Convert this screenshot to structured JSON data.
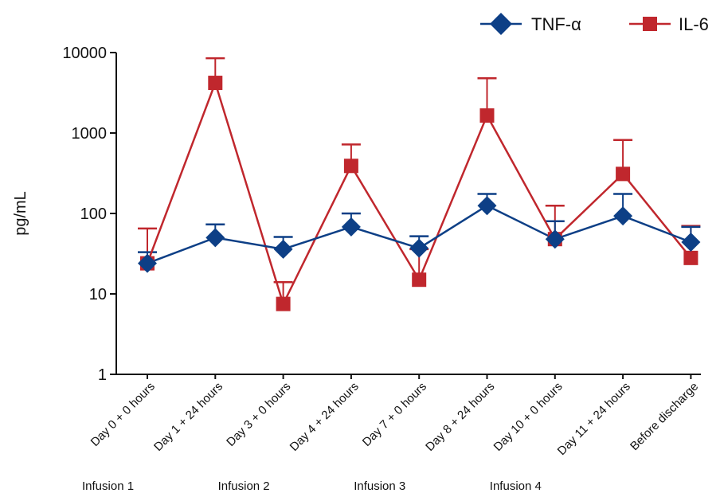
{
  "chart_data": {
    "type": "line",
    "ylabel": "pg/mL",
    "y_scale": "log",
    "ylim": [
      1,
      10000
    ],
    "yticks": [
      1,
      10,
      100,
      1000,
      10000
    ],
    "ytick_labels": [
      "1",
      "10",
      "100",
      "1000",
      "10000"
    ],
    "categories": [
      "Day 0 + 0 hours",
      "Day 1 + 24 hours",
      "Day 3 + 0 hours",
      "Day 4 + 24 hours",
      "Day 7 + 0 hours",
      "Day 8 + 24 hours",
      "Day 10 + 0 hours",
      "Day 11 + 24 hours",
      "Before discharge"
    ],
    "groups": [
      {
        "label": "Infusion 1",
        "from_category": 0
      },
      {
        "label": "Infusion 2",
        "from_category": 2
      },
      {
        "label": "Infusion 3",
        "from_category": 4
      },
      {
        "label": "Infusion 4",
        "from_category": 6
      }
    ],
    "series": [
      {
        "name": "TNF-α",
        "color": "#0d3f86",
        "marker": "diamond",
        "values": [
          24,
          50,
          36,
          68,
          37,
          125,
          48,
          93,
          44
        ],
        "error_upper": [
          33,
          73,
          51,
          100,
          52,
          175,
          80,
          175,
          68
        ]
      },
      {
        "name": "IL-6",
        "color": "#c0272d",
        "marker": "square",
        "values": [
          24,
          4200,
          7.5,
          390,
          15,
          1650,
          48,
          310,
          28
        ],
        "error_upper": [
          65,
          8500,
          14,
          720,
          36,
          4800,
          125,
          820,
          70
        ]
      }
    ],
    "legend_position": "top-right",
    "grid": false
  }
}
